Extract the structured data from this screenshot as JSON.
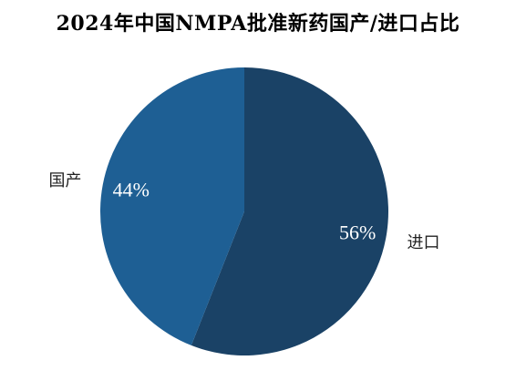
{
  "chart_data": {
    "type": "pie",
    "title": "2024年中国NMPA批准新药国产/进口占比",
    "slices": [
      {
        "name": "进口",
        "value": 56,
        "label": "56%",
        "color": "#1a4266"
      },
      {
        "name": "国产",
        "value": 44,
        "label": "44%",
        "color": "#1e5f94"
      }
    ],
    "start": "12 o'clock",
    "direction": "clockwise",
    "legend": "none"
  }
}
